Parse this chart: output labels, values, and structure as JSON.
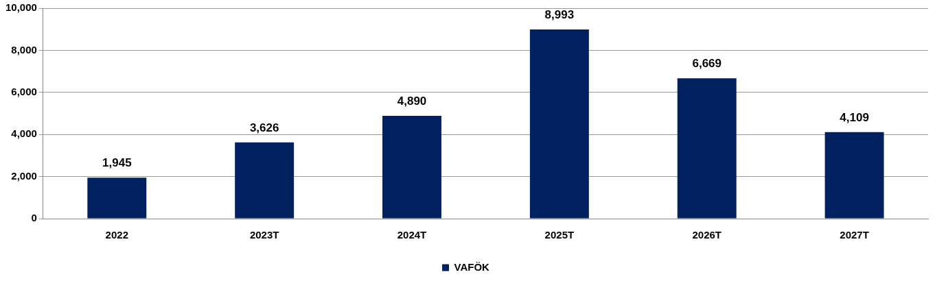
{
  "chart_data": {
    "type": "bar",
    "categories": [
      "2022",
      "2023T",
      "2024T",
      "2025T",
      "2026T",
      "2027T"
    ],
    "series": [
      {
        "name": "VAFÖK",
        "color": "#002060",
        "values": [
          1945,
          3626,
          4890,
          8993,
          6669,
          4109
        ],
        "value_labels": [
          "1,945",
          "3,626",
          "4,890",
          "8,993",
          "6,669",
          "4,109"
        ]
      }
    ],
    "ylim": [
      0,
      10000
    ],
    "yticks": [
      {
        "value": 0,
        "label": "0"
      },
      {
        "value": 2000,
        "label": "2,000"
      },
      {
        "value": 4000,
        "label": "4,000"
      },
      {
        "value": 6000,
        "label": "6,000"
      },
      {
        "value": 8000,
        "label": "8,000"
      },
      {
        "value": 10000,
        "label": "10,000"
      }
    ],
    "grid": "y",
    "legend": "bottom"
  }
}
